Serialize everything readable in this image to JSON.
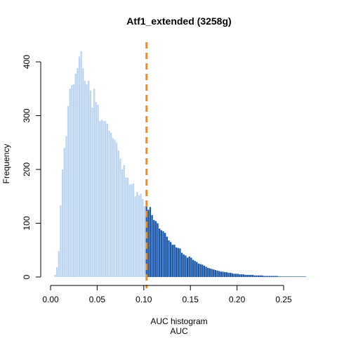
{
  "chart_data": {
    "type": "bar",
    "title": "Atf1_extended (3258g)",
    "xlabel": "AUC histogram",
    "xlabel_sub": "AUC",
    "ylabel": "Frequency",
    "xlim": [
      0.0,
      0.275
    ],
    "ylim": [
      0,
      420
    ],
    "x_ticks": [
      "0.00",
      "0.05",
      "0.10",
      "0.15",
      "0.20",
      "0.25"
    ],
    "y_ticks": [
      "0",
      "100",
      "200",
      "300",
      "400"
    ],
    "bin_start": 0.0,
    "bin_width": 0.002,
    "threshold": 0.103,
    "colors": {
      "below_threshold": "#bcd6f2",
      "above_threshold": "#1b57a8",
      "threshold_line": "#f08c1e",
      "axis": "#000000"
    },
    "values": [
      0,
      0,
      4,
      18,
      48,
      133,
      200,
      240,
      262,
      318,
      350,
      357,
      358,
      378,
      388,
      410,
      420,
      388,
      365,
      358,
      365,
      347,
      315,
      350,
      325,
      320,
      290,
      292,
      290,
      290,
      285,
      272,
      268,
      258,
      255,
      250,
      235,
      220,
      200,
      208,
      185,
      185,
      172,
      173,
      174,
      150,
      158,
      152,
      155,
      145,
      132,
      133,
      125,
      130,
      115,
      106,
      104,
      100,
      90,
      87,
      85,
      82,
      75,
      68,
      65,
      60,
      60,
      55,
      54,
      53,
      45,
      42,
      40,
      36,
      38,
      36,
      32,
      30,
      28,
      25,
      24,
      23,
      21,
      19,
      17,
      16,
      15,
      14,
      13,
      12,
      11,
      10,
      10,
      9,
      9,
      8,
      8,
      7,
      6,
      6,
      6,
      5,
      5,
      5,
      4,
      4,
      4,
      4,
      4,
      3,
      3,
      3,
      3,
      3,
      2,
      2,
      2,
      2,
      2,
      2,
      2,
      2,
      1,
      1,
      1,
      1,
      1,
      1,
      1,
      1,
      1,
      1,
      1,
      1,
      1,
      1,
      1
    ]
  }
}
